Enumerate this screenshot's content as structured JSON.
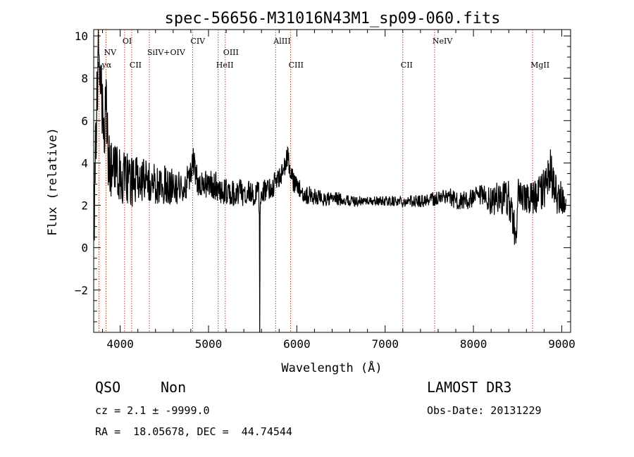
{
  "chart_data": {
    "type": "line",
    "title": "spec-56656-M31016N43M1_sp09-060.fits",
    "xlabel": "Wavelength (Å)",
    "ylabel": "Flux (relative)",
    "xlim": [
      3700,
      9100
    ],
    "ylim": [
      -4,
      10.3
    ],
    "xticks": [
      4000,
      5000,
      6000,
      7000,
      8000,
      9000
    ],
    "yticks": [
      -2,
      0,
      2,
      4,
      6,
      8,
      10
    ],
    "spectrum_color": "#000000",
    "line_color": "#c0392b",
    "emission_lines": [
      {
        "name": "Lyα",
        "x": 3760,
        "row": 3
      },
      {
        "name": "NV",
        "x": 3840,
        "row": 2
      },
      {
        "name": "OI",
        "x": 4050,
        "row": 1
      },
      {
        "name": "CII",
        "x": 4130,
        "row": 3
      },
      {
        "name": "SiIV+OIV",
        "x": 4330,
        "row": 2
      },
      {
        "name": "CIV",
        "x": 4820,
        "row": 1
      },
      {
        "name": "HeII",
        "x": 5110,
        "row": 3
      },
      {
        "name": "OIII",
        "x": 5190,
        "row": 2
      },
      {
        "name": "AlIII",
        "x": 5760,
        "row": 1
      },
      {
        "name": "CIII",
        "x": 5930,
        "row": 3
      },
      {
        "name": "CII",
        "x": 7200,
        "row": 3
      },
      {
        "name": "NeIV",
        "x": 7560,
        "row": 1
      },
      {
        "name": "MgII",
        "x": 8670,
        "row": 3
      }
    ],
    "spectrum_anchors": {
      "x": [
        3700,
        3720,
        3740,
        3760,
        3780,
        3800,
        3820,
        3840,
        3860,
        3880,
        3900,
        3950,
        4000,
        4050,
        4100,
        4150,
        4200,
        4250,
        4300,
        4350,
        4400,
        4450,
        4500,
        4600,
        4700,
        4750,
        4800,
        4830,
        4870,
        4900,
        5000,
        5100,
        5200,
        5300,
        5400,
        5500,
        5570,
        5580,
        5590,
        5610,
        5700,
        5800,
        5850,
        5890,
        5920,
        5950,
        6000,
        6100,
        6200,
        6300,
        6400,
        6500,
        6600,
        6700,
        6800,
        6900,
        7000,
        7100,
        7200,
        7300,
        7400,
        7500,
        7600,
        7700,
        7800,
        7900,
        8000,
        8100,
        8200,
        8300,
        8400,
        8450,
        8480,
        8500,
        8550,
        8600,
        8700,
        8750,
        8800,
        8850,
        8870,
        8900,
        8950,
        9000,
        9050
      ],
      "y": [
        0.5,
        5.0,
        7.5,
        9.5,
        8.0,
        7.0,
        6.0,
        6.5,
        4.5,
        4.0,
        3.6,
        3.4,
        3.5,
        3.2,
        3.3,
        3.0,
        3.2,
        3.1,
        3.3,
        3.2,
        3.0,
        2.8,
        3.0,
        2.9,
        2.8,
        3.0,
        3.6,
        4.2,
        3.2,
        3.0,
        3.0,
        2.9,
        2.6,
        2.6,
        2.6,
        2.6,
        2.5,
        0.0,
        2.5,
        2.7,
        2.8,
        3.3,
        3.6,
        4.4,
        3.8,
        3.2,
        2.8,
        2.5,
        2.4,
        2.3,
        2.3,
        2.3,
        2.2,
        2.2,
        2.2,
        2.2,
        2.2,
        2.2,
        2.2,
        2.2,
        2.2,
        2.3,
        2.3,
        2.5,
        2.2,
        2.2,
        2.3,
        2.4,
        2.2,
        2.4,
        2.3,
        1.3,
        0.3,
        2.5,
        2.3,
        2.3,
        2.4,
        2.5,
        2.7,
        3.5,
        3.8,
        3.0,
        2.5,
        2.3,
        1.5
      ]
    },
    "spectrum_noise_amplitude": {
      "x": [
        3700,
        3900,
        4500,
        5000,
        5600,
        6000,
        6800,
        7400,
        8000,
        8400,
        8600,
        8800,
        9050
      ],
      "y": [
        2.2,
        1.4,
        0.9,
        0.7,
        0.6,
        0.5,
        0.2,
        0.3,
        0.5,
        0.9,
        0.7,
        1.1,
        0.8
      ]
    }
  },
  "info": {
    "class": "QSO",
    "subclass": "Non",
    "survey": "LAMOST DR3",
    "cz": "cz = 2.1 ± -9999.0",
    "obs_date": "Obs-Date: 20131229",
    "coords": "RA =  18.05678, DEC =  44.74544"
  }
}
